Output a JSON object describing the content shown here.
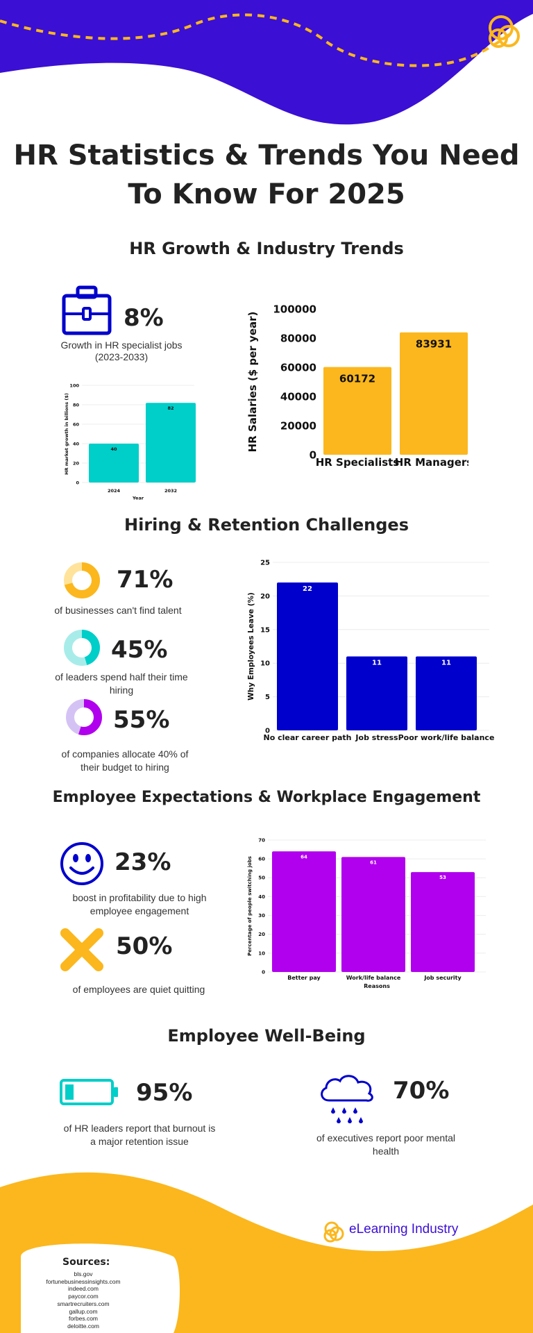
{
  "colors": {
    "purple": "#3b0fd4",
    "yellow": "#fbb71d",
    "teal": "#00cec9",
    "blue": "#0000cc",
    "violet": "#b000ee"
  },
  "page_title": "HR Statistics & Trends You Need To Know For 2025",
  "sections": {
    "growth": {
      "title": "HR Growth & Industry Trends",
      "stat": {
        "value": "8%",
        "caption": "Growth in HR specialist jobs",
        "subcaption": "(2023-2033)",
        "icon": "briefcase-icon"
      }
    },
    "hiring": {
      "title": "Hiring & Retention Challenges",
      "stats": [
        {
          "value": "71%",
          "caption": "of businesses can't find talent",
          "icon": "donut-icon"
        },
        {
          "value": "45%",
          "caption": "of leaders spend half their time hiring",
          "icon": "donut-icon"
        },
        {
          "value": "55%",
          "caption": "of companies allocate 40% of their budget to hiring",
          "icon": "donut-icon"
        }
      ]
    },
    "engagement": {
      "title": "Employee Expectations & Workplace Engagement",
      "stats": [
        {
          "value": "23%",
          "caption": "boost in profitability due to high employee engagement",
          "icon": "smiley-icon"
        },
        {
          "value": "50%",
          "caption": "of employees are quiet quitting",
          "icon": "x-mark-icon"
        }
      ]
    },
    "wellbeing": {
      "title": "Employee Well-Being",
      "stats": [
        {
          "value": "95%",
          "caption": "of HR leaders report that burnout is a major retention issue",
          "icon": "low-battery-icon"
        },
        {
          "value": "70%",
          "caption": "of executives report poor mental health",
          "icon": "rain-cloud-icon"
        }
      ]
    }
  },
  "brand": "eLearning Industry",
  "sources": {
    "title": "Sources:",
    "items": [
      "bls.gov",
      "fortunebusinessinsights.com",
      "indeed.com",
      "paycor.com",
      "smartrecruiters.com",
      "gallup.com",
      "forbes.com",
      "deloitte.com"
    ]
  },
  "chart_data": [
    {
      "type": "bar",
      "categories": [
        "2024",
        "2032"
      ],
      "values": [
        40,
        82
      ],
      "xlabel": "Year",
      "ylabel": "HR market growth in billions ($)",
      "ylim": [
        0,
        100
      ],
      "yticks": [
        0,
        20,
        40,
        60,
        80,
        100
      ],
      "color": "#00cec9",
      "grid": true
    },
    {
      "type": "bar",
      "categories": [
        "HR Specialists",
        "HR Managers"
      ],
      "values": [
        60172,
        83931
      ],
      "xlabel": "",
      "ylabel": "HR Salaries ($ per year)",
      "ylim": [
        0,
        100000
      ],
      "yticks": [
        0,
        20000,
        40000,
        60000,
        80000,
        100000
      ],
      "color": "#fbb71d",
      "grid": false
    },
    {
      "type": "bar",
      "categories": [
        "No clear career path",
        "Job stress",
        "Poor work/life balance"
      ],
      "values": [
        22,
        11,
        11
      ],
      "xlabel": "",
      "ylabel": "Why Employees Leave (%)",
      "ylim": [
        0,
        25
      ],
      "yticks": [
        0,
        5,
        10,
        15,
        20,
        25
      ],
      "color": "#0000cc",
      "grid": true
    },
    {
      "type": "bar",
      "categories": [
        "Better pay",
        "Work/life balance",
        "Job security"
      ],
      "values": [
        64,
        61,
        53
      ],
      "xlabel": "Reasons",
      "ylabel": "Percentage of people switching jobs",
      "ylim": [
        0,
        70
      ],
      "yticks": [
        0,
        10,
        20,
        30,
        40,
        50,
        60,
        70
      ],
      "color": "#b000ee",
      "grid": true
    }
  ]
}
